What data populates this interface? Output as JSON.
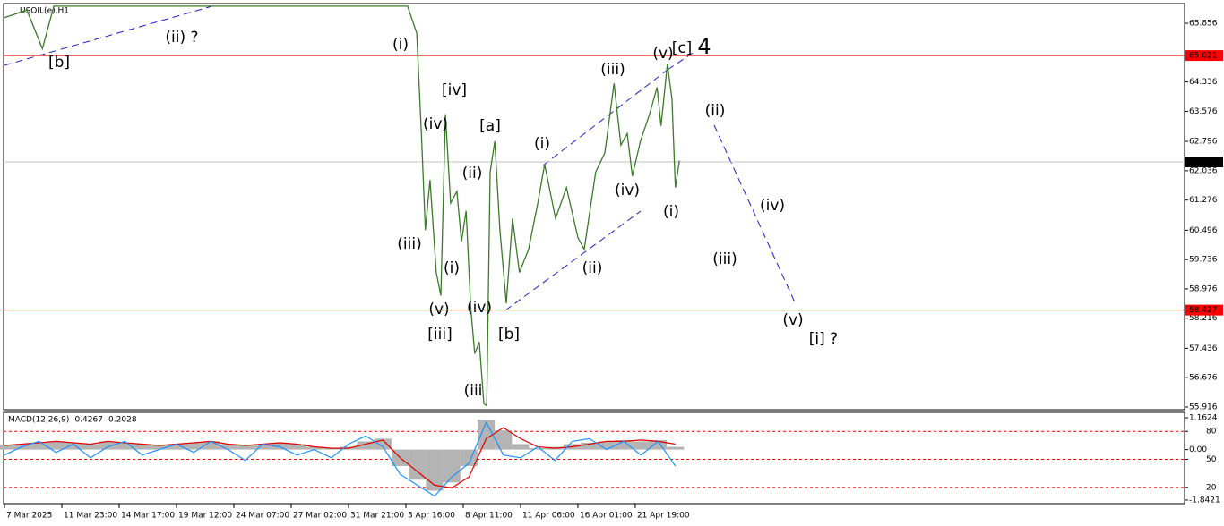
{
  "chart_data": [
    {
      "type": "line",
      "title": "USOIL(e),H1",
      "color": "#3c7a2a",
      "x": [
        0,
        0.39,
        0.66,
        0.86,
        1.64,
        7.03,
        7.19,
        7.27,
        7.34,
        7.42,
        7.53,
        7.61,
        7.69,
        7.78,
        7.89,
        7.97,
        8.05,
        8.13,
        8.2,
        8.28,
        8.36,
        8.41,
        8.47,
        8.55,
        8.64,
        8.75,
        8.86,
        8.98,
        9.14,
        9.3,
        9.42,
        9.61,
        9.8,
        10,
        10.11,
        10.31,
        10.47,
        10.63,
        10.75,
        10.86,
        10.95,
        11.09,
        11.25,
        11.38,
        11.45,
        11.56,
        11.64,
        11.7,
        11.77
      ],
      "values": [
        66.0,
        66.2,
        65.2,
        66.3,
        66.3,
        66.3,
        65.6,
        63.0,
        60.5,
        61.8,
        59.4,
        58.8,
        63.5,
        61.2,
        61.5,
        60.2,
        61.0,
        58.5,
        57.3,
        57.6,
        56.0,
        55.95,
        62.0,
        62.8,
        60.5,
        58.6,
        60.8,
        59.4,
        60.0,
        61.2,
        62.2,
        60.8,
        61.6,
        60.3,
        60.0,
        62.0,
        62.5,
        64.3,
        62.7,
        63.0,
        61.9,
        62.8,
        63.5,
        64.2,
        63.2,
        64.8,
        63.9,
        61.6,
        62.3
      ],
      "xlim": [
        -0.016,
        20.58
      ],
      "xticks": [
        {
          "value": 0,
          "label": "7 Mar 2025"
        },
        {
          "value": 1,
          "label": "11 Mar 23:00"
        },
        {
          "value": 2,
          "label": "14 Mar 17:00"
        },
        {
          "value": 3,
          "label": "19 Mar 12:00"
        },
        {
          "value": 4,
          "label": "24 Mar 07:00"
        },
        {
          "value": 5,
          "label": "27 Mar 02:00"
        },
        {
          "value": 6,
          "label": "31 Mar 21:00"
        },
        {
          "value": 7,
          "label": "3 Apr 16:00"
        },
        {
          "value": 8,
          "label": "8 Apr 11:00"
        },
        {
          "value": 9,
          "label": "11 Apr 06:00"
        },
        {
          "value": 10,
          "label": "16 Apr 01:00"
        },
        {
          "value": 11,
          "label": "21 Apr 19:00"
        }
      ],
      "ylim": [
        55.846,
        66.367
      ],
      "yticks": [
        65.856,
        64.336,
        63.576,
        62.796,
        62.036,
        61.276,
        60.496,
        59.736,
        58.976,
        58.216,
        57.436,
        56.676,
        55.916
      ],
      "hlines": [
        {
          "value": 65.021,
          "color": "#ff0000"
        },
        {
          "value": 62.265,
          "color": "#c0c0c0"
        },
        {
          "value": 58.427,
          "color": "#ff0000"
        }
      ],
      "annotations": [
        {
          "text": "[b]",
          "color": "#3a9a1a"
        },
        {
          "text": "(ii) ?",
          "color": "#1a1acc"
        },
        {
          "text": "(i)",
          "color": "#1a1acc"
        },
        {
          "text": "[iv]",
          "color": "#3a9a1a"
        },
        {
          "text": "(iv)",
          "color": "#1a1acc"
        },
        {
          "text": "[a]",
          "color": "#3a9a1a"
        },
        {
          "text": "(i)",
          "color": "#1a1acc"
        },
        {
          "text": "(ii)",
          "color": "#1a1acc"
        },
        {
          "text": "(iii)",
          "color": "#1a1acc"
        },
        {
          "text": "(v)",
          "color": "#1a1acc"
        },
        {
          "text": "[c]",
          "color": "#3a9a1a"
        },
        {
          "text": "4",
          "color": "#1a1acc"
        },
        {
          "text": "(ii)",
          "color": "#1a1acc"
        },
        {
          "text": "(iv)",
          "color": "#1a1acc"
        },
        {
          "text": "(i)",
          "color": "#1a1acc"
        },
        {
          "text": "(iv)",
          "color": "#1a1acc"
        },
        {
          "text": "(iii)",
          "color": "#1a1acc"
        },
        {
          "text": "(i)",
          "color": "#1a1acc"
        },
        {
          "text": "(ii)",
          "color": "#1a1acc"
        },
        {
          "text": "(iii)",
          "color": "#1a1acc"
        },
        {
          "text": "(v)",
          "color": "#1a1acc"
        },
        {
          "text": "(iv)",
          "color": "#1a1acc"
        },
        {
          "text": "[iii]",
          "color": "#3a9a1a"
        },
        {
          "text": "[b]",
          "color": "#3a9a1a"
        },
        {
          "text": "(v)",
          "color": "#1a1acc"
        },
        {
          "text": "[i] ?",
          "color": "#3a9a1a"
        },
        {
          "text": "(iii",
          "color": "#1a1acc"
        }
      ]
    },
    {
      "type": "macd",
      "title": "MACD(12,26,9) -0.4267 -0.2028",
      "x": [
        0,
        0.3,
        0.6,
        0.9,
        1.2,
        1.5,
        1.8,
        2.1,
        2.4,
        2.7,
        3,
        3.3,
        3.6,
        3.9,
        4.2,
        4.5,
        4.8,
        5.1,
        5.4,
        5.7,
        6,
        6.3,
        6.6,
        6.9,
        7.2,
        7.5,
        7.8,
        8.1,
        8.4,
        8.7,
        9,
        9.3,
        9.6,
        9.9,
        10.2,
        10.5,
        10.8,
        11.1,
        11.4,
        11.7
      ],
      "series": [
        {
          "kind": "bar",
          "color": "#b4b4b4",
          "values": [
            0.15,
            0.2,
            0.25,
            0.3,
            0.25,
            0.2,
            0.3,
            0.25,
            0.2,
            0.15,
            0.2,
            0.25,
            0.3,
            0.2,
            0.15,
            0.2,
            0.25,
            0.2,
            0.1,
            0.05,
            0.1,
            0.3,
            0.4,
            -0.6,
            -1.1,
            -1.5,
            -1.2,
            -0.6,
            1.1,
            0.7,
            0.2,
            0.05,
            0.1,
            0.2,
            0.25,
            0.3,
            0.35,
            0.3,
            0.35,
            0.1
          ]
        },
        {
          "kind": "line",
          "color": "#e00000",
          "values": [
            0.15,
            0.2,
            0.25,
            0.3,
            0.25,
            0.2,
            0.3,
            0.25,
            0.2,
            0.15,
            0.2,
            0.25,
            0.3,
            0.2,
            0.15,
            0.2,
            0.25,
            0.2,
            0.1,
            0.05,
            0.05,
            0.2,
            0.35,
            -0.3,
            -0.8,
            -1.3,
            -1.4,
            -1.0,
            0.4,
            0.8,
            0.4,
            0.1,
            0.05,
            0.1,
            0.2,
            0.3,
            0.3,
            0.35,
            0.3,
            0.2
          ]
        },
        {
          "kind": "line",
          "color": "#1e90ff",
          "values": [
            -0.2,
            0.1,
            0.3,
            -0.1,
            0.2,
            -0.3,
            0.1,
            0.3,
            -0.2,
            0.0,
            0.2,
            -0.1,
            0.3,
            0.0,
            -0.4,
            0.2,
            0.1,
            -0.2,
            0.0,
            -0.3,
            0.2,
            0.5,
            0.1,
            -0.9,
            -1.3,
            -1.7,
            -1.0,
            -0.5,
            1.0,
            -0.2,
            -0.3,
            0.1,
            -0.4,
            0.3,
            0.4,
            0.0,
            0.3,
            -0.2,
            0.3,
            -0.6
          ]
        }
      ],
      "xlim": [
        -0.016,
        20.58
      ],
      "ylim": [
        -1.974,
        1.36
      ],
      "yticks": [
        1.1624,
        {
          "value": 0,
          "label": "0.00"
        },
        -1.8421
      ],
      "levels": [
        {
          "value": 0.667,
          "label": "80"
        },
        {
          "value": -0.356,
          "label": "50"
        },
        {
          "value": -1.38,
          "label": "20"
        }
      ]
    }
  ]
}
